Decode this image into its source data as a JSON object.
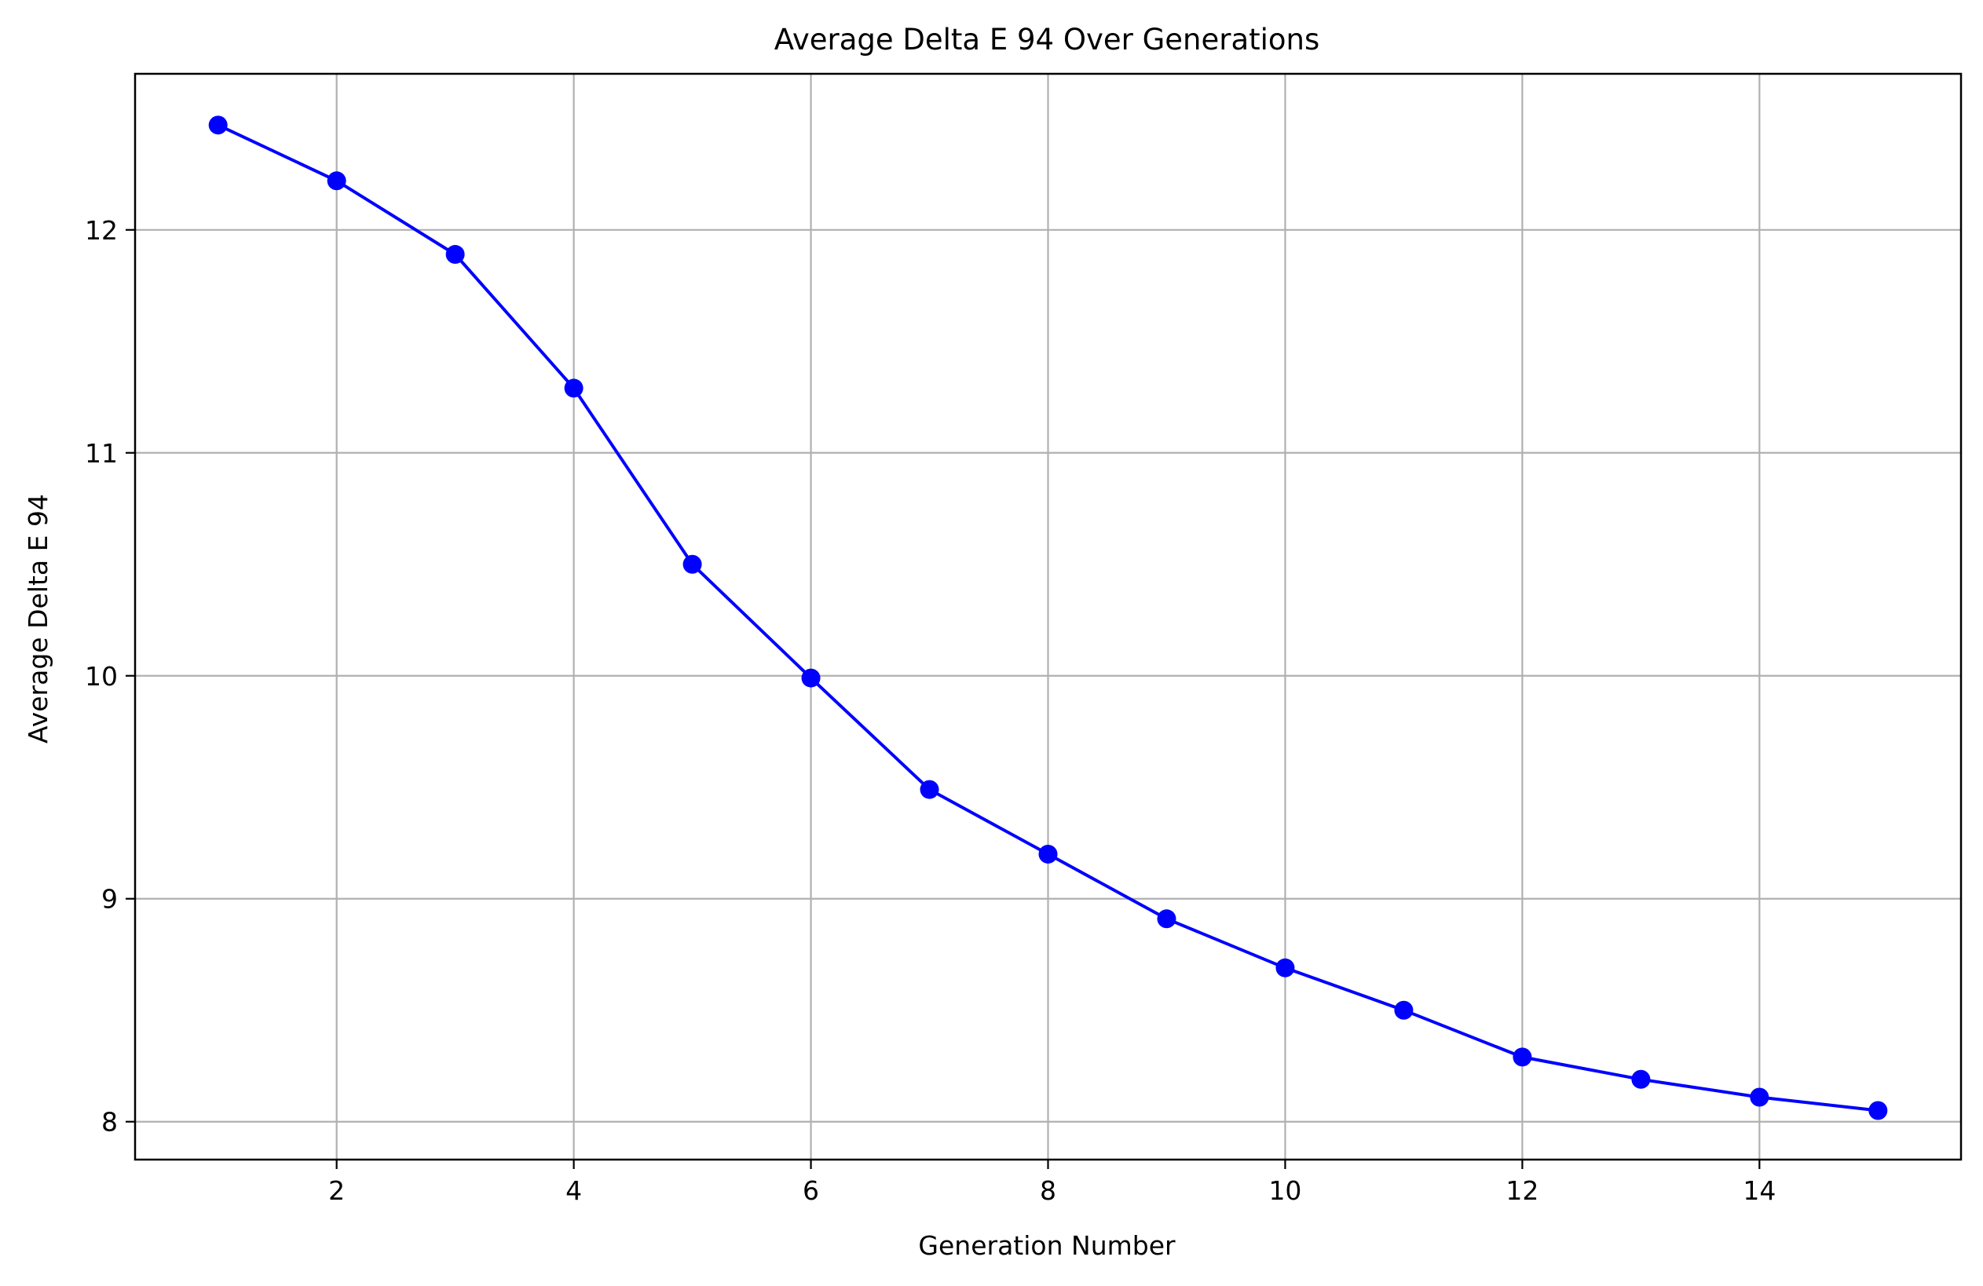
{
  "chart_data": {
    "type": "line",
    "title": "Average Delta E 94 Over Generations",
    "xlabel": "Generation Number",
    "ylabel": "Average Delta E 94",
    "xlim": [
      0.3,
      15.7
    ],
    "ylim": [
      7.83,
      12.7
    ],
    "xticks": [
      2,
      4,
      6,
      8,
      10,
      12,
      14
    ],
    "yticks": [
      8,
      9,
      10,
      11,
      12
    ],
    "grid": true,
    "series": [
      {
        "color": "#0000ff",
        "marker": "circle",
        "x": [
          1,
          2,
          3,
          4,
          5,
          6,
          7,
          8,
          9,
          10,
          11,
          12,
          13,
          14,
          15
        ],
        "y": [
          12.47,
          12.22,
          11.89,
          11.29,
          10.5,
          9.99,
          9.49,
          9.2,
          8.91,
          8.69,
          8.5,
          8.29,
          8.19,
          8.11,
          8.05
        ]
      }
    ]
  }
}
